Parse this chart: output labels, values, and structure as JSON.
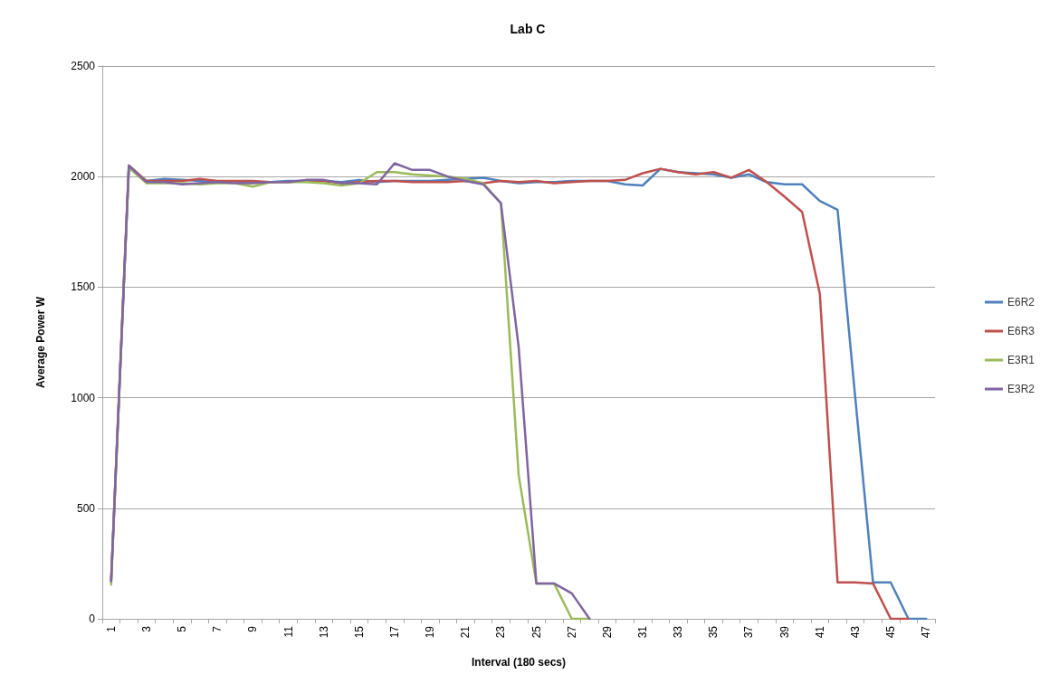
{
  "chart_data": {
    "type": "line",
    "title": "Lab C",
    "xlabel": "Interval (180 secs)",
    "ylabel": "Average Power W",
    "categories": [
      "1",
      null,
      "3",
      null,
      "5",
      null,
      "7",
      null,
      "9",
      null,
      "11",
      null,
      "13",
      null,
      "15",
      null,
      "17",
      null,
      "19",
      null,
      "21",
      null,
      "23",
      null,
      "25",
      null,
      "27",
      null,
      "29",
      null,
      "31",
      null,
      "33",
      null,
      "35",
      null,
      "37",
      null,
      "39",
      null,
      "41",
      null,
      "43",
      null,
      "45",
      null,
      "47"
    ],
    "series": [
      {
        "name": "E6R2",
        "color": "#4f81bd",
        "values": [
          170,
          2040,
          1980,
          1990,
          1985,
          1980,
          1975,
          1975,
          1975,
          1975,
          1980,
          1980,
          1980,
          1975,
          1985,
          1975,
          1980,
          1980,
          1980,
          1985,
          1990,
          1995,
          1980,
          1970,
          1975,
          1975,
          1980,
          1980,
          1980,
          1965,
          1960,
          2035,
          2020,
          2015,
          2010,
          1995,
          2010,
          1975,
          1965,
          1965,
          1890,
          1850,
          1000,
          165,
          165,
          0,
          0
        ]
      },
      {
        "name": "E6R3",
        "color": "#c0504d",
        "values": [
          180,
          2050,
          1980,
          1980,
          1980,
          1990,
          1980,
          1980,
          1980,
          1975,
          1975,
          1980,
          1980,
          1970,
          1975,
          1980,
          1980,
          1975,
          1975,
          1975,
          1980,
          1970,
          1980,
          1975,
          1980,
          1970,
          1975,
          1980,
          1980,
          1985,
          2015,
          2035,
          2020,
          2010,
          2020,
          1995,
          2030,
          1975,
          1910,
          1840,
          1470,
          165,
          165,
          160,
          0,
          0,
          null
        ]
      },
      {
        "name": "E3R1",
        "color": "#9bbb59",
        "values": [
          155,
          2040,
          1970,
          1970,
          1970,
          1965,
          1970,
          1970,
          1955,
          1975,
          1975,
          1975,
          1970,
          1960,
          1970,
          2020,
          2020,
          2010,
          2005,
          2000,
          1990,
          1970,
          1880,
          650,
          160,
          160,
          0,
          0,
          null,
          null,
          null,
          null,
          null,
          null,
          null,
          null,
          null,
          null,
          null,
          null,
          null,
          null,
          null,
          null,
          null,
          null,
          null
        ]
      },
      {
        "name": "E3R2",
        "color": "#8064a2",
        "values": [
          170,
          2050,
          1975,
          1975,
          1965,
          1970,
          1975,
          1970,
          1970,
          1975,
          1975,
          1985,
          1985,
          1970,
          1970,
          1965,
          2060,
          2030,
          2030,
          2000,
          1980,
          1965,
          1880,
          1230,
          160,
          160,
          115,
          0,
          null,
          null,
          null,
          null,
          null,
          null,
          null,
          null,
          null,
          null,
          null,
          null,
          null,
          null,
          null,
          null,
          null,
          null,
          null
        ]
      }
    ],
    "ylim": [
      0,
      2500
    ],
    "yticks": [
      0,
      500,
      1000,
      1500,
      2000,
      2500
    ],
    "grid": "y",
    "legend": "right",
    "marker": "none",
    "line_style": "solid"
  }
}
